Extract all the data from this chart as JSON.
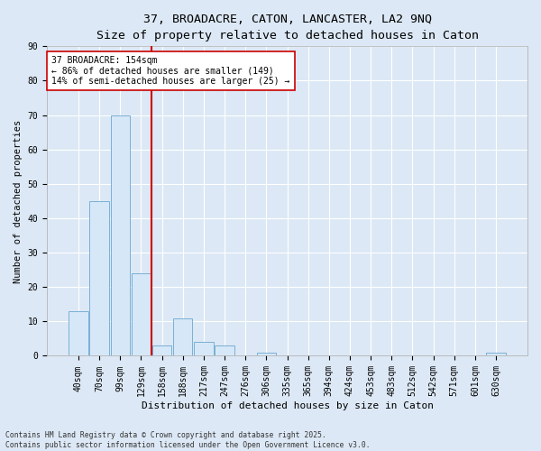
{
  "title1": "37, BROADACRE, CATON, LANCASTER, LA2 9NQ",
  "title2": "Size of property relative to detached houses in Caton",
  "xlabel": "Distribution of detached houses by size in Caton",
  "ylabel": "Number of detached properties",
  "categories": [
    "40sqm",
    "70sqm",
    "99sqm",
    "129sqm",
    "158sqm",
    "188sqm",
    "217sqm",
    "247sqm",
    "276sqm",
    "306sqm",
    "335sqm",
    "365sqm",
    "394sqm",
    "424sqm",
    "453sqm",
    "483sqm",
    "512sqm",
    "542sqm",
    "571sqm",
    "601sqm",
    "630sqm"
  ],
  "values": [
    13,
    45,
    70,
    24,
    3,
    11,
    4,
    3,
    0,
    1,
    0,
    0,
    0,
    0,
    0,
    0,
    0,
    0,
    0,
    0,
    1
  ],
  "bar_color": "#d6e8f7",
  "bar_edge_color": "#7ab0d4",
  "vline_color": "#cc0000",
  "annotation_text": "37 BROADACRE: 154sqm\n← 86% of detached houses are smaller (149)\n14% of semi-detached houses are larger (25) →",
  "annotation_box_facecolor": "#ffffff",
  "annotation_box_edgecolor": "#cc0000",
  "ylim": [
    0,
    90
  ],
  "yticks": [
    0,
    10,
    20,
    30,
    40,
    50,
    60,
    70,
    80,
    90
  ],
  "background_color": "#dce8f5",
  "plot_bg_color": "#dce8f5",
  "grid_color": "#ffffff",
  "footer1": "Contains HM Land Registry data © Crown copyright and database right 2025.",
  "footer2": "Contains public sector information licensed under the Open Government Licence v3.0.",
  "title_fontsize": 9.5,
  "tick_fontsize": 7,
  "xlabel_fontsize": 8,
  "ylabel_fontsize": 7.5,
  "annotation_fontsize": 7,
  "footer_fontsize": 5.8
}
